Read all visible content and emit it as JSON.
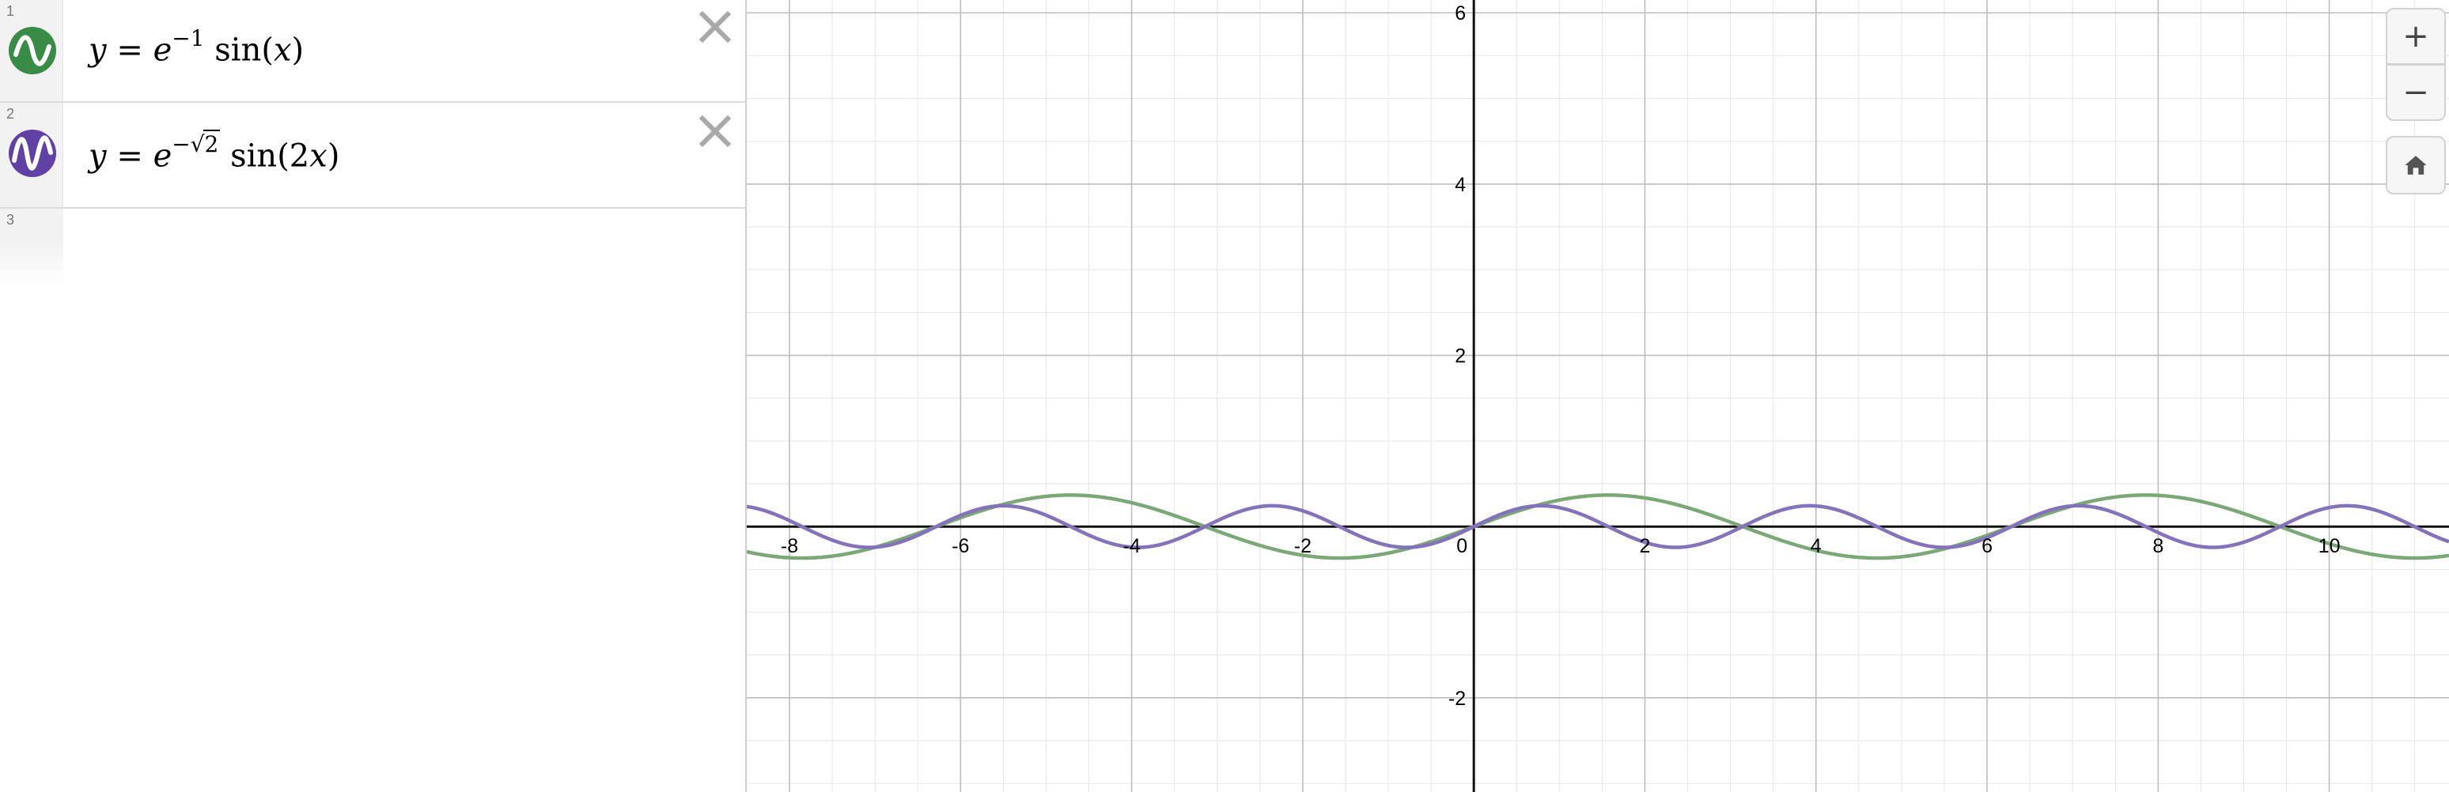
{
  "expressions": [
    {
      "index": "1",
      "icon": "sine-wave-icon",
      "color": "#388c46",
      "parts": {
        "lhs": "y",
        "eq": " = ",
        "base": "e",
        "exp_sign": "−",
        "exp_val": "1",
        "fn": "sin",
        "open": "(",
        "arg_coef": "",
        "arg_var": "x",
        "close": ")"
      }
    },
    {
      "index": "2",
      "icon": "sine-wave-icon",
      "color": "#6042a6",
      "parts": {
        "lhs": "y",
        "eq": " = ",
        "base": "e",
        "exp_sign": "−",
        "radical": "√",
        "radicand": "2",
        "fn": "sin",
        "open": "(",
        "arg_coef": "2",
        "arg_var": "x",
        "close": ")"
      }
    },
    {
      "index": "3"
    }
  ],
  "graph": {
    "x_range": [
      -8.5,
      11.4
    ],
    "y_range": [
      -3.1,
      6.15
    ],
    "x_tick_labels": [
      "-8",
      "-6",
      "-4",
      "-2",
      "0",
      "2",
      "4",
      "6",
      "8",
      "10"
    ],
    "y_tick_labels": [
      "6",
      "4",
      "2",
      "-2"
    ],
    "curves": [
      {
        "name": "",
        "color": "#7aa876",
        "amplitude": 0.3679,
        "frequency": 1
      },
      {
        "name": "",
        "color": "#8472ba",
        "amplitude": 0.2431,
        "frequency": 2
      }
    ]
  },
  "controls": {
    "zoom_in_label": "+",
    "zoom_out_label": "−",
    "home_icon": "home-icon"
  }
}
